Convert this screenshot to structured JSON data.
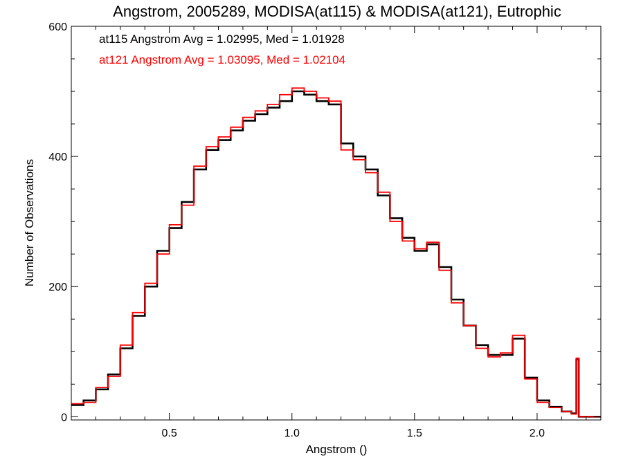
{
  "chart_data": {
    "type": "line",
    "title": "Angstrom, 2005289, MODISA(at115) & MODISA(at121), Eutrophic",
    "xlabel": "Angstrom ()",
    "ylabel": "Number of Observations",
    "xlim": [
      0.1,
      2.26
    ],
    "ylim": [
      -5,
      600
    ],
    "xticks": [
      0.5,
      1.0,
      1.5,
      2.0
    ],
    "xtick_labels": [
      "0.5",
      "1.0",
      "1.5",
      "2.0"
    ],
    "yticks": [
      0,
      200,
      400,
      600
    ],
    "ytick_labels": [
      "0",
      "200",
      "400",
      "600"
    ],
    "grid": false,
    "series": [
      {
        "name": "at115",
        "color": "#000000",
        "annotation": "at115 Angstrom Avg = 1.02995, Med = 1.01928",
        "x": [
          0.1,
          0.15,
          0.2,
          0.25,
          0.3,
          0.35,
          0.4,
          0.45,
          0.5,
          0.55,
          0.6,
          0.65,
          0.7,
          0.75,
          0.8,
          0.85,
          0.9,
          0.95,
          1.0,
          1.05,
          1.1,
          1.15,
          1.2,
          1.25,
          1.3,
          1.35,
          1.4,
          1.45,
          1.5,
          1.55,
          1.6,
          1.65,
          1.7,
          1.75,
          1.8,
          1.85,
          1.9,
          1.95,
          2.0,
          2.05,
          2.1,
          2.14,
          2.16,
          2.17,
          2.26
        ],
        "values": [
          18,
          25,
          42,
          65,
          105,
          155,
          200,
          255,
          290,
          330,
          380,
          410,
          425,
          440,
          455,
          465,
          475,
          485,
          500,
          495,
          485,
          480,
          420,
          400,
          380,
          340,
          305,
          275,
          255,
          265,
          230,
          180,
          140,
          110,
          95,
          95,
          120,
          60,
          25,
          15,
          8,
          5,
          88,
          0,
          0
        ]
      },
      {
        "name": "at121",
        "color": "#ff0000",
        "annotation": "at121 Angstrom Avg = 1.03095, Med = 1.02104",
        "x": [
          0.1,
          0.15,
          0.2,
          0.25,
          0.3,
          0.35,
          0.4,
          0.45,
          0.5,
          0.55,
          0.6,
          0.65,
          0.7,
          0.75,
          0.8,
          0.85,
          0.9,
          0.95,
          1.0,
          1.05,
          1.1,
          1.15,
          1.2,
          1.25,
          1.3,
          1.35,
          1.4,
          1.45,
          1.5,
          1.55,
          1.6,
          1.65,
          1.7,
          1.75,
          1.8,
          1.85,
          1.9,
          1.95,
          2.0,
          2.05,
          2.1,
          2.14,
          2.16,
          2.17,
          2.26
        ],
        "values": [
          20,
          22,
          45,
          62,
          110,
          160,
          205,
          250,
          295,
          325,
          385,
          415,
          430,
          445,
          460,
          470,
          480,
          495,
          505,
          500,
          490,
          485,
          410,
          395,
          375,
          345,
          300,
          270,
          258,
          268,
          225,
          175,
          140,
          105,
          92,
          98,
          125,
          58,
          22,
          14,
          8,
          4,
          90,
          0,
          0
        ]
      }
    ]
  }
}
